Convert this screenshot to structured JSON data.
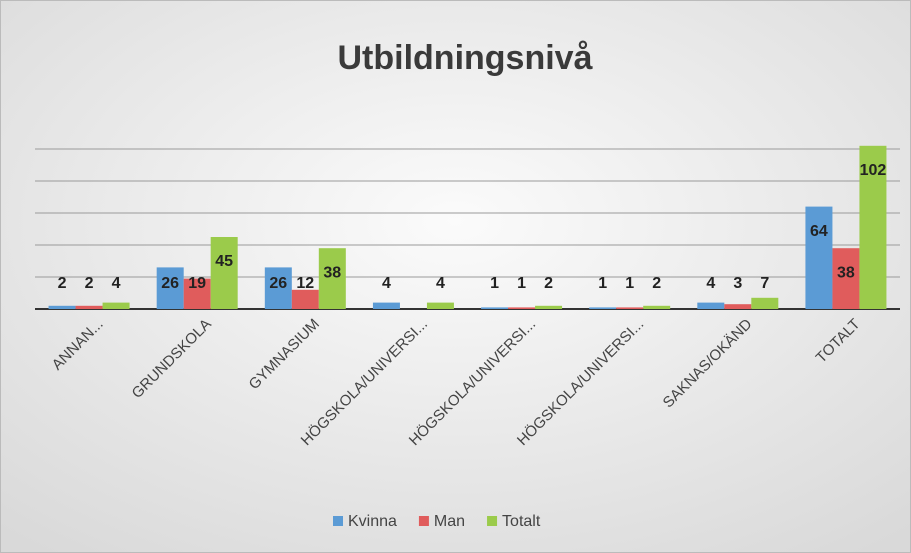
{
  "chart_data": {
    "type": "bar",
    "title": "Utbildningsnivå",
    "categories": [
      "ANNAN...",
      "GRUNDSKOLA",
      "GYMNASIUM",
      "HÖGSKOLA/UNIVERSI...",
      "HÖGSKOLA/UNIVERSI...",
      "HÖGSKOLA/UNIVERSI...",
      "SAKNAS/OKÄND",
      "TOTALT"
    ],
    "series": [
      {
        "name": "Kvinna",
        "color": "#5b9bd5",
        "values": [
          2,
          26,
          26,
          4,
          1,
          1,
          4,
          64
        ]
      },
      {
        "name": "Man",
        "color": "#e05c5c",
        "values": [
          2,
          19,
          12,
          null,
          1,
          1,
          3,
          38
        ]
      },
      {
        "name": "Totalt",
        "color": "#9bcb4b",
        "values": [
          4,
          45,
          38,
          4,
          2,
          2,
          7,
          102
        ]
      }
    ],
    "ylim": [
      0,
      120
    ],
    "yticks": [
      0,
      20,
      40,
      60,
      80,
      100
    ],
    "grid": true,
    "legend": "bottom"
  }
}
